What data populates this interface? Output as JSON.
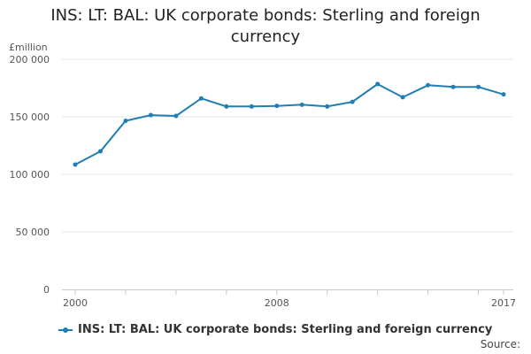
{
  "chart_data": {
    "type": "line",
    "title_lines": [
      "INS: LT: BAL: UK corporate bonds: Sterling and foreign",
      "currency"
    ],
    "ylabel": "£million",
    "xlabel": "",
    "ylim": [
      0,
      200000
    ],
    "yticks": [
      0,
      50000,
      100000,
      150000,
      200000
    ],
    "ytick_labels": [
      "0",
      "50 000",
      "100 000",
      "150 000",
      "200 000"
    ],
    "xlim": [
      2000,
      2017
    ],
    "xtick_labels": [
      {
        "x": 2000,
        "label": "2000"
      },
      {
        "x": 2008,
        "label": "2008"
      },
      {
        "x": 2017,
        "label": "2017"
      }
    ],
    "grid": true,
    "legend": "bottom",
    "series": [
      {
        "name": "INS: LT: BAL: UK corporate bonds: Sterling and foreign currency",
        "color": "#1f7eb3",
        "x": [
          2000,
          2001,
          2002,
          2003,
          2004,
          2005,
          2006,
          2007,
          2008,
          2009,
          2010,
          2011,
          2012,
          2013,
          2014,
          2015,
          2016,
          2017
        ],
        "values": [
          108500,
          120000,
          146500,
          151500,
          150800,
          166000,
          159000,
          159000,
          159500,
          160500,
          159000,
          163000,
          178500,
          167000,
          177500,
          176000,
          176000,
          169500
        ]
      }
    ]
  },
  "source_label": "Source:"
}
